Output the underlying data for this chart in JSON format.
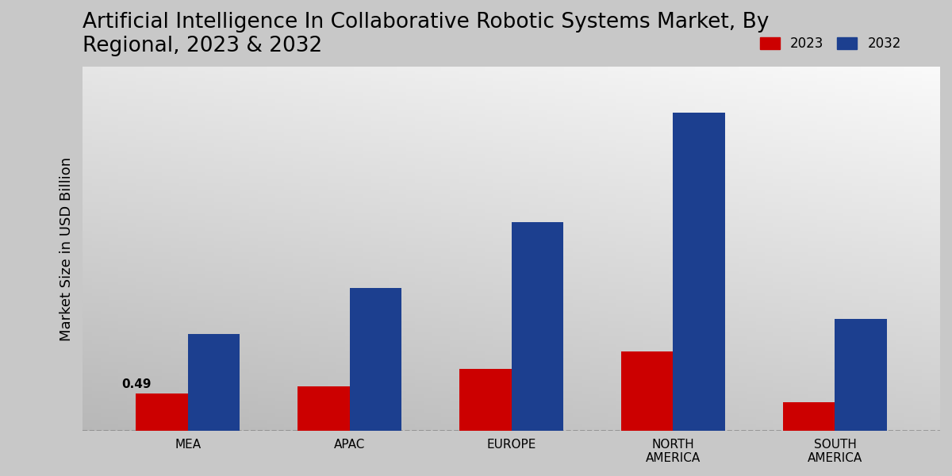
{
  "title": "Artificial Intelligence In Collaborative Robotic Systems Market, By\nRegional, 2023 & 2032",
  "ylabel": "Market Size in USD Billion",
  "categories": [
    "MEA",
    "APAC",
    "EUROPE",
    "NORTH\nAMERICA",
    "SOUTH\nAMERICA"
  ],
  "values_2023": [
    0.49,
    0.58,
    0.82,
    1.05,
    0.38
  ],
  "values_2032": [
    1.28,
    1.88,
    2.75,
    4.2,
    1.48
  ],
  "color_2023": "#cc0000",
  "color_2032": "#1c3f8f",
  "annotation_text": "0.49",
  "annotation_index": 0,
  "legend_2023": "2023",
  "legend_2032": "2032",
  "bar_width": 0.32,
  "ylim": [
    0,
    4.8
  ],
  "title_fontsize": 19,
  "axis_label_fontsize": 13,
  "tick_fontsize": 11,
  "legend_fontsize": 12
}
